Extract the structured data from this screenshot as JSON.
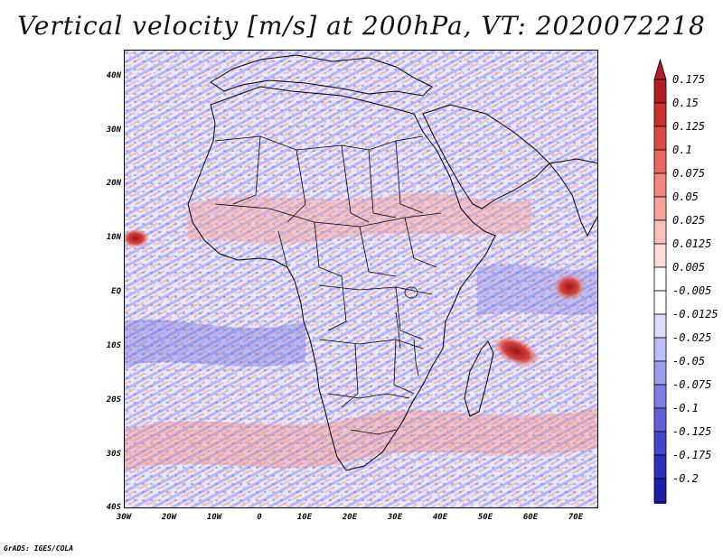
{
  "title": "Vertical velocity [m/s] at 200hPa, VT: 2020072218",
  "credit": "GrADS: IGES/COLA",
  "lat_labels": [
    "40N",
    "30N",
    "20N",
    "10N",
    "EQ",
    "10S",
    "20S",
    "30S",
    "40S"
  ],
  "lon_labels": [
    "30W",
    "20W",
    "10W",
    "0",
    "10E",
    "20E",
    "30E",
    "40E",
    "50E",
    "60E",
    "70E"
  ],
  "colorbar": {
    "labels": [
      "0.175",
      "0.15",
      "0.125",
      "0.1",
      "0.075",
      "0.05",
      "0.025",
      "0.0125",
      "0.005",
      "-0.005",
      "-0.0125",
      "-0.025",
      "-0.05",
      "-0.075",
      "-0.1",
      "-0.125",
      "-0.175",
      "-0.2"
    ],
    "colors": [
      "#b01e23",
      "#c8322e",
      "#dc4a44",
      "#ea6660",
      "#f3847e",
      "#f7a39e",
      "#fbc0bc",
      "#fddcda",
      "#ffffff",
      "#ffffff",
      "#dcdcfb",
      "#bdbdf6",
      "#9c9cef",
      "#7d7de6",
      "#5f5fdc",
      "#4545cf",
      "#2f2fbd",
      "#1e1ea8"
    ]
  },
  "map": {
    "region": "Africa and surrounding oceans",
    "lon_range": [
      -30,
      75
    ],
    "lat_range": [
      -40,
      45
    ],
    "field": "vertical velocity (m/s) at 200 hPa",
    "features": [
      {
        "name": "strong ascent maximum SW Indian Ocean",
        "lon": 56,
        "lat": -12,
        "value": 0.175
      },
      {
        "name": "ascent maximum NE of Madagascar",
        "lon": 67,
        "lat": 1,
        "value": 0.15
      },
      {
        "name": "ascent maximum tropical Atlantic",
        "lon": -29,
        "lat": 10,
        "value": 0.125
      }
    ]
  }
}
